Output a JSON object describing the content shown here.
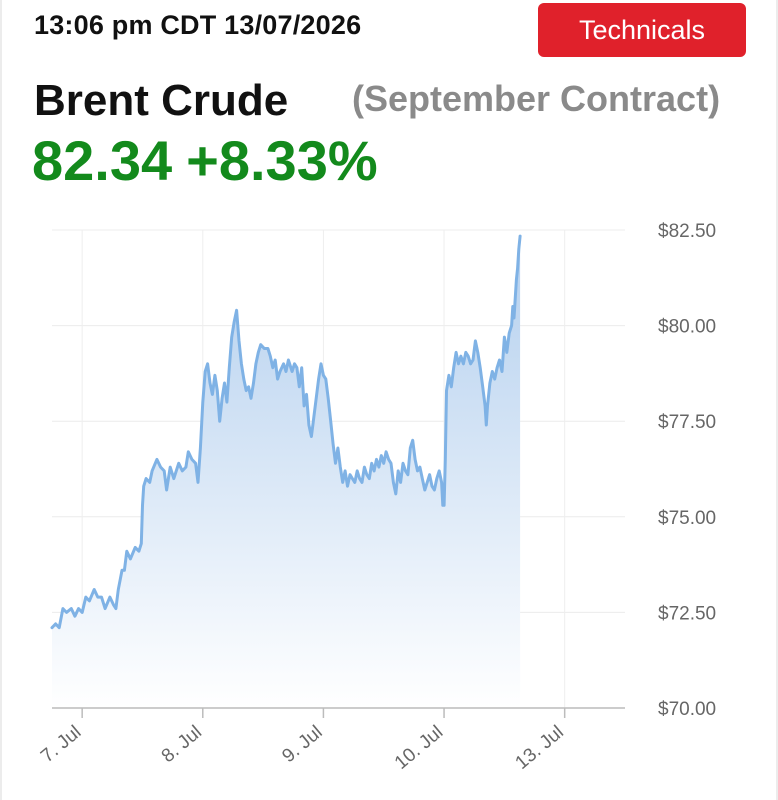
{
  "header": {
    "timestamp": "13:06 pm CDT 13/07/2026",
    "technicals_label": "Technicals"
  },
  "instrument": {
    "name": "Brent Crude",
    "contract": "(September Contract)",
    "price": "82.34",
    "change": "+8.33%",
    "change_color": "#138a1c",
    "button_color": "#e0212b"
  },
  "chart_data": {
    "type": "area",
    "line_color": "#7fb2e5",
    "fill_color": "#b9d4f0",
    "ylim": [
      70,
      82.5
    ],
    "y_ticks": [
      70,
      72.5,
      75,
      77.5,
      80,
      82.5
    ],
    "y_tick_labels": [
      "$70.00",
      "$72.50",
      "$75.00",
      "$77.50",
      "$80.00",
      "$82.50"
    ],
    "x_tick_labels": [
      "7. Jul",
      "8. Jul",
      "9. Jul",
      "10. Jul",
      "13. Jul"
    ],
    "x_ticks": [
      0.5,
      1.5,
      2.5,
      3.5,
      4.5
    ],
    "xlim": [
      0.25,
      5.0
    ],
    "grid": true,
    "series": [
      {
        "values": [
          [
            0.25,
            72.1
          ],
          [
            0.28,
            72.2
          ],
          [
            0.31,
            72.1
          ],
          [
            0.34,
            72.6
          ],
          [
            0.37,
            72.5
          ],
          [
            0.41,
            72.6
          ],
          [
            0.44,
            72.4
          ],
          [
            0.47,
            72.6
          ],
          [
            0.5,
            72.5
          ],
          [
            0.53,
            72.9
          ],
          [
            0.56,
            72.8
          ],
          [
            0.6,
            73.1
          ],
          [
            0.63,
            72.9
          ],
          [
            0.66,
            72.9
          ],
          [
            0.69,
            72.6
          ],
          [
            0.73,
            72.9
          ],
          [
            0.76,
            72.7
          ],
          [
            0.78,
            72.6
          ],
          [
            0.8,
            73.1
          ],
          [
            0.83,
            73.6
          ],
          [
            0.85,
            73.6
          ],
          [
            0.87,
            74.1
          ],
          [
            0.9,
            73.9
          ],
          [
            0.94,
            74.2
          ],
          [
            0.97,
            74.1
          ],
          [
            0.99,
            74.3
          ],
          [
            1.0,
            75.3
          ],
          [
            1.01,
            75.8
          ],
          [
            1.03,
            76.0
          ],
          [
            1.06,
            75.9
          ],
          [
            1.08,
            76.2
          ],
          [
            1.12,
            76.5
          ],
          [
            1.15,
            76.3
          ],
          [
            1.18,
            76.2
          ],
          [
            1.2,
            75.7
          ],
          [
            1.23,
            76.3
          ],
          [
            1.26,
            76.0
          ],
          [
            1.3,
            76.4
          ],
          [
            1.33,
            76.2
          ],
          [
            1.36,
            76.3
          ],
          [
            1.38,
            76.7
          ],
          [
            1.41,
            76.5
          ],
          [
            1.44,
            76.4
          ],
          [
            1.46,
            75.9
          ],
          [
            1.48,
            76.8
          ],
          [
            1.5,
            78.0
          ],
          [
            1.52,
            78.8
          ],
          [
            1.54,
            79.0
          ],
          [
            1.56,
            78.5
          ],
          [
            1.58,
            78.2
          ],
          [
            1.6,
            78.7
          ],
          [
            1.62,
            78.3
          ],
          [
            1.64,
            77.5
          ],
          [
            1.66,
            78.1
          ],
          [
            1.68,
            78.5
          ],
          [
            1.7,
            78.0
          ],
          [
            1.72,
            78.9
          ],
          [
            1.74,
            79.7
          ],
          [
            1.76,
            80.1
          ],
          [
            1.78,
            80.4
          ],
          [
            1.8,
            79.6
          ],
          [
            1.82,
            79.0
          ],
          [
            1.84,
            78.6
          ],
          [
            1.86,
            78.3
          ],
          [
            1.88,
            78.4
          ],
          [
            1.9,
            78.1
          ],
          [
            1.92,
            78.5
          ],
          [
            1.94,
            79.0
          ],
          [
            1.96,
            79.3
          ],
          [
            1.98,
            79.5
          ],
          [
            2.01,
            79.4
          ],
          [
            2.04,
            79.4
          ],
          [
            2.06,
            79.2
          ],
          [
            2.08,
            78.9
          ],
          [
            2.1,
            79.1
          ],
          [
            2.12,
            78.6
          ],
          [
            2.14,
            78.8
          ],
          [
            2.17,
            79.0
          ],
          [
            2.19,
            78.8
          ],
          [
            2.21,
            79.1
          ],
          [
            2.24,
            78.8
          ],
          [
            2.26,
            79.0
          ],
          [
            2.28,
            78.9
          ],
          [
            2.3,
            78.4
          ],
          [
            2.32,
            78.9
          ],
          [
            2.34,
            77.9
          ],
          [
            2.36,
            78.2
          ],
          [
            2.38,
            77.4
          ],
          [
            2.4,
            77.1
          ],
          [
            2.42,
            77.6
          ],
          [
            2.44,
            78.1
          ],
          [
            2.46,
            78.6
          ],
          [
            2.48,
            79.0
          ],
          [
            2.5,
            78.7
          ],
          [
            2.52,
            78.6
          ],
          [
            2.54,
            78.1
          ],
          [
            2.56,
            77.5
          ],
          [
            2.58,
            76.9
          ],
          [
            2.6,
            76.4
          ],
          [
            2.62,
            76.8
          ],
          [
            2.64,
            76.3
          ],
          [
            2.66,
            75.9
          ],
          [
            2.68,
            76.2
          ],
          [
            2.7,
            75.8
          ],
          [
            2.72,
            76.1
          ],
          [
            2.74,
            76.0
          ],
          [
            2.76,
            75.9
          ],
          [
            2.78,
            76.2
          ],
          [
            2.8,
            76.0
          ],
          [
            2.82,
            75.9
          ],
          [
            2.84,
            76.3
          ],
          [
            2.86,
            76.1
          ],
          [
            2.88,
            76.0
          ],
          [
            2.9,
            76.4
          ],
          [
            2.92,
            76.2
          ],
          [
            2.94,
            76.5
          ],
          [
            2.96,
            76.3
          ],
          [
            2.98,
            76.6
          ],
          [
            3.0,
            76.4
          ],
          [
            3.02,
            76.7
          ],
          [
            3.04,
            76.5
          ],
          [
            3.06,
            76.4
          ],
          [
            3.08,
            75.9
          ],
          [
            3.1,
            75.6
          ],
          [
            3.12,
            76.2
          ],
          [
            3.14,
            75.9
          ],
          [
            3.16,
            76.4
          ],
          [
            3.18,
            76.2
          ],
          [
            3.2,
            76.1
          ],
          [
            3.22,
            76.8
          ],
          [
            3.24,
            77.0
          ],
          [
            3.26,
            76.5
          ],
          [
            3.28,
            76.2
          ],
          [
            3.3,
            76.3
          ],
          [
            3.32,
            76.0
          ],
          [
            3.34,
            75.7
          ],
          [
            3.36,
            75.9
          ],
          [
            3.38,
            76.1
          ],
          [
            3.4,
            75.8
          ],
          [
            3.42,
            75.7
          ],
          [
            3.44,
            76.0
          ],
          [
            3.46,
            76.2
          ],
          [
            3.48,
            75.9
          ],
          [
            3.49,
            75.3
          ],
          [
            3.5,
            75.3
          ],
          [
            3.51,
            76.5
          ],
          [
            3.52,
            78.3
          ],
          [
            3.54,
            78.7
          ],
          [
            3.56,
            78.4
          ],
          [
            3.58,
            78.9
          ],
          [
            3.6,
            79.3
          ],
          [
            3.62,
            79.0
          ],
          [
            3.64,
            79.2
          ],
          [
            3.66,
            79.0
          ],
          [
            3.68,
            79.3
          ],
          [
            3.7,
            79.2
          ],
          [
            3.72,
            79.0
          ],
          [
            3.74,
            79.1
          ],
          [
            3.76,
            79.6
          ],
          [
            3.78,
            79.3
          ],
          [
            3.8,
            78.9
          ],
          [
            3.82,
            78.4
          ],
          [
            3.84,
            77.9
          ],
          [
            3.85,
            77.4
          ],
          [
            3.86,
            77.9
          ],
          [
            3.88,
            78.5
          ],
          [
            3.9,
            78.8
          ],
          [
            3.92,
            78.6
          ],
          [
            3.94,
            78.9
          ],
          [
            3.96,
            79.1
          ],
          [
            3.98,
            78.8
          ],
          [
            4.0,
            79.7
          ],
          [
            4.02,
            79.3
          ],
          [
            4.04,
            79.8
          ],
          [
            4.06,
            80.0
          ],
          [
            4.07,
            80.5
          ],
          [
            4.08,
            80.2
          ],
          [
            4.09,
            80.7
          ],
          [
            4.1,
            81.2
          ],
          [
            4.11,
            81.5
          ],
          [
            4.12,
            82.0
          ],
          [
            4.13,
            82.34
          ]
        ]
      }
    ]
  }
}
